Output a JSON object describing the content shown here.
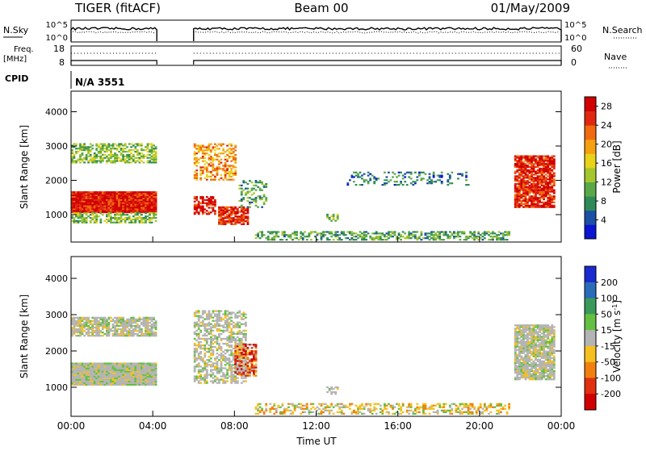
{
  "header": {
    "title": "TIGER (fitACF)",
    "beam": "Beam 00",
    "date": "01/May/2009"
  },
  "top_panels": {
    "nsky_label": "N.Sky",
    "nsky_ticks": [
      "10^5",
      "10^0"
    ],
    "nsearch_label": "N.Search",
    "freq_label_1": "Freq.",
    "freq_label_2": "[MHz]",
    "freq_ticks": [
      "18",
      "8"
    ],
    "nave_label": "Nave",
    "nave_ticks": [
      "60",
      "0"
    ],
    "cpid_label": "CPID",
    "cpid_value": "N/A 3551"
  },
  "chart_data": [
    {
      "type": "heatmap",
      "title": "",
      "ylabel": "Slant Range [km]",
      "xlabel": "",
      "x_unit": "hours UT",
      "xlim": [
        0,
        24
      ],
      "ylim": [
        200,
        4600
      ],
      "yticks": [
        "1000",
        "2000",
        "3000",
        "4000"
      ],
      "ytick_values": [
        1000,
        2000,
        3000,
        4000
      ],
      "colorbar": {
        "label": "Power [dB]",
        "ticks": [
          "4",
          "8",
          "12",
          "16",
          "20",
          "24",
          "28"
        ],
        "tick_values": [
          4,
          8,
          12,
          16,
          20,
          24,
          28
        ],
        "range": [
          0,
          30
        ],
        "colors": [
          "#0a14d2",
          "#1c4fa6",
          "#2e8b57",
          "#5aa848",
          "#a4c62e",
          "#e8d21a",
          "#f5a010",
          "#f06a10",
          "#e02810",
          "#d00000"
        ]
      },
      "data_gap_hours": [
        4.2,
        6.0
      ],
      "regions": [
        {
          "t": [
            0.0,
            4.2
          ],
          "r": [
            1050,
            1650
          ],
          "level": 27,
          "density": 1.0
        },
        {
          "t": [
            0.0,
            4.2
          ],
          "r": [
            750,
            1050
          ],
          "level": 12,
          "density": 0.6
        },
        {
          "t": [
            0.0,
            4.2
          ],
          "r": [
            2500,
            3050
          ],
          "level": 12,
          "density": 0.6
        },
        {
          "t": [
            6.0,
            7.0
          ],
          "r": [
            1000,
            1500
          ],
          "level": 27,
          "density": 0.7
        },
        {
          "t": [
            6.0,
            8.0
          ],
          "r": [
            2000,
            3050
          ],
          "level": 20,
          "density": 0.5
        },
        {
          "t": [
            7.2,
            8.6
          ],
          "r": [
            700,
            1200
          ],
          "level": 26,
          "density": 0.8
        },
        {
          "t": [
            8.2,
            9.5
          ],
          "r": [
            1200,
            2000
          ],
          "level": 10,
          "density": 0.35
        },
        {
          "t": [
            12.5,
            13.0
          ],
          "r": [
            800,
            1000
          ],
          "level": 12,
          "density": 0.5
        },
        {
          "t": [
            13.5,
            19.5
          ],
          "r": [
            1850,
            2250
          ],
          "level": 7,
          "density": 0.3
        },
        {
          "t": [
            9.0,
            21.5
          ],
          "r": [
            250,
            500
          ],
          "level": 10,
          "density": 0.5
        },
        {
          "t": [
            21.7,
            23.7
          ],
          "r": [
            1200,
            2700
          ],
          "level": 26,
          "density": 0.85
        }
      ]
    },
    {
      "type": "heatmap",
      "title": "",
      "ylabel": "Slant Range [km]",
      "xlabel": "Time UT",
      "x_unit": "hours UT",
      "xlim": [
        0,
        24
      ],
      "ylim": [
        200,
        4600
      ],
      "xticks": [
        "00:00",
        "04:00",
        "08:00",
        "12:00",
        "16:00",
        "20:00",
        "00:00"
      ],
      "xtick_values": [
        0,
        4,
        8,
        12,
        16,
        20,
        24
      ],
      "yticks": [
        "1000",
        "2000",
        "3000",
        "4000"
      ],
      "ytick_values": [
        1000,
        2000,
        3000,
        4000
      ],
      "colorbar": {
        "label": "Velocity [m s^-1]",
        "ticks": [
          "200",
          "100",
          "50",
          "15",
          "-15",
          "-50",
          "-100",
          "-200"
        ],
        "colors": [
          "#1a2ad0",
          "#2a6cb8",
          "#3a9a5a",
          "#64c040",
          "#b4b4b4",
          "#f5c020",
          "#f08010",
          "#e03010",
          "#d00000"
        ]
      },
      "data_gap_hours": [
        4.2,
        6.0
      ],
      "regions": [
        {
          "t": [
            0.0,
            4.2
          ],
          "r": [
            1050,
            1650
          ],
          "class": "gray",
          "density": 1.0
        },
        {
          "t": [
            0.0,
            4.2
          ],
          "r": [
            2400,
            2900
          ],
          "class": "gray",
          "density": 0.8
        },
        {
          "t": [
            6.0,
            8.5
          ],
          "r": [
            1100,
            3100
          ],
          "class": "gray",
          "density": 0.55
        },
        {
          "t": [
            8.0,
            9.0
          ],
          "r": [
            1300,
            2200
          ],
          "class": "red",
          "density": 0.75
        },
        {
          "t": [
            9.0,
            21.5
          ],
          "r": [
            250,
            550
          ],
          "class": "orange",
          "density": 0.45
        },
        {
          "t": [
            12.5,
            13.0
          ],
          "r": [
            800,
            1000
          ],
          "class": "gray",
          "density": 0.5
        },
        {
          "t": [
            21.7,
            23.7
          ],
          "r": [
            1200,
            2700
          ],
          "class": "gray",
          "density": 0.9
        }
      ]
    }
  ]
}
